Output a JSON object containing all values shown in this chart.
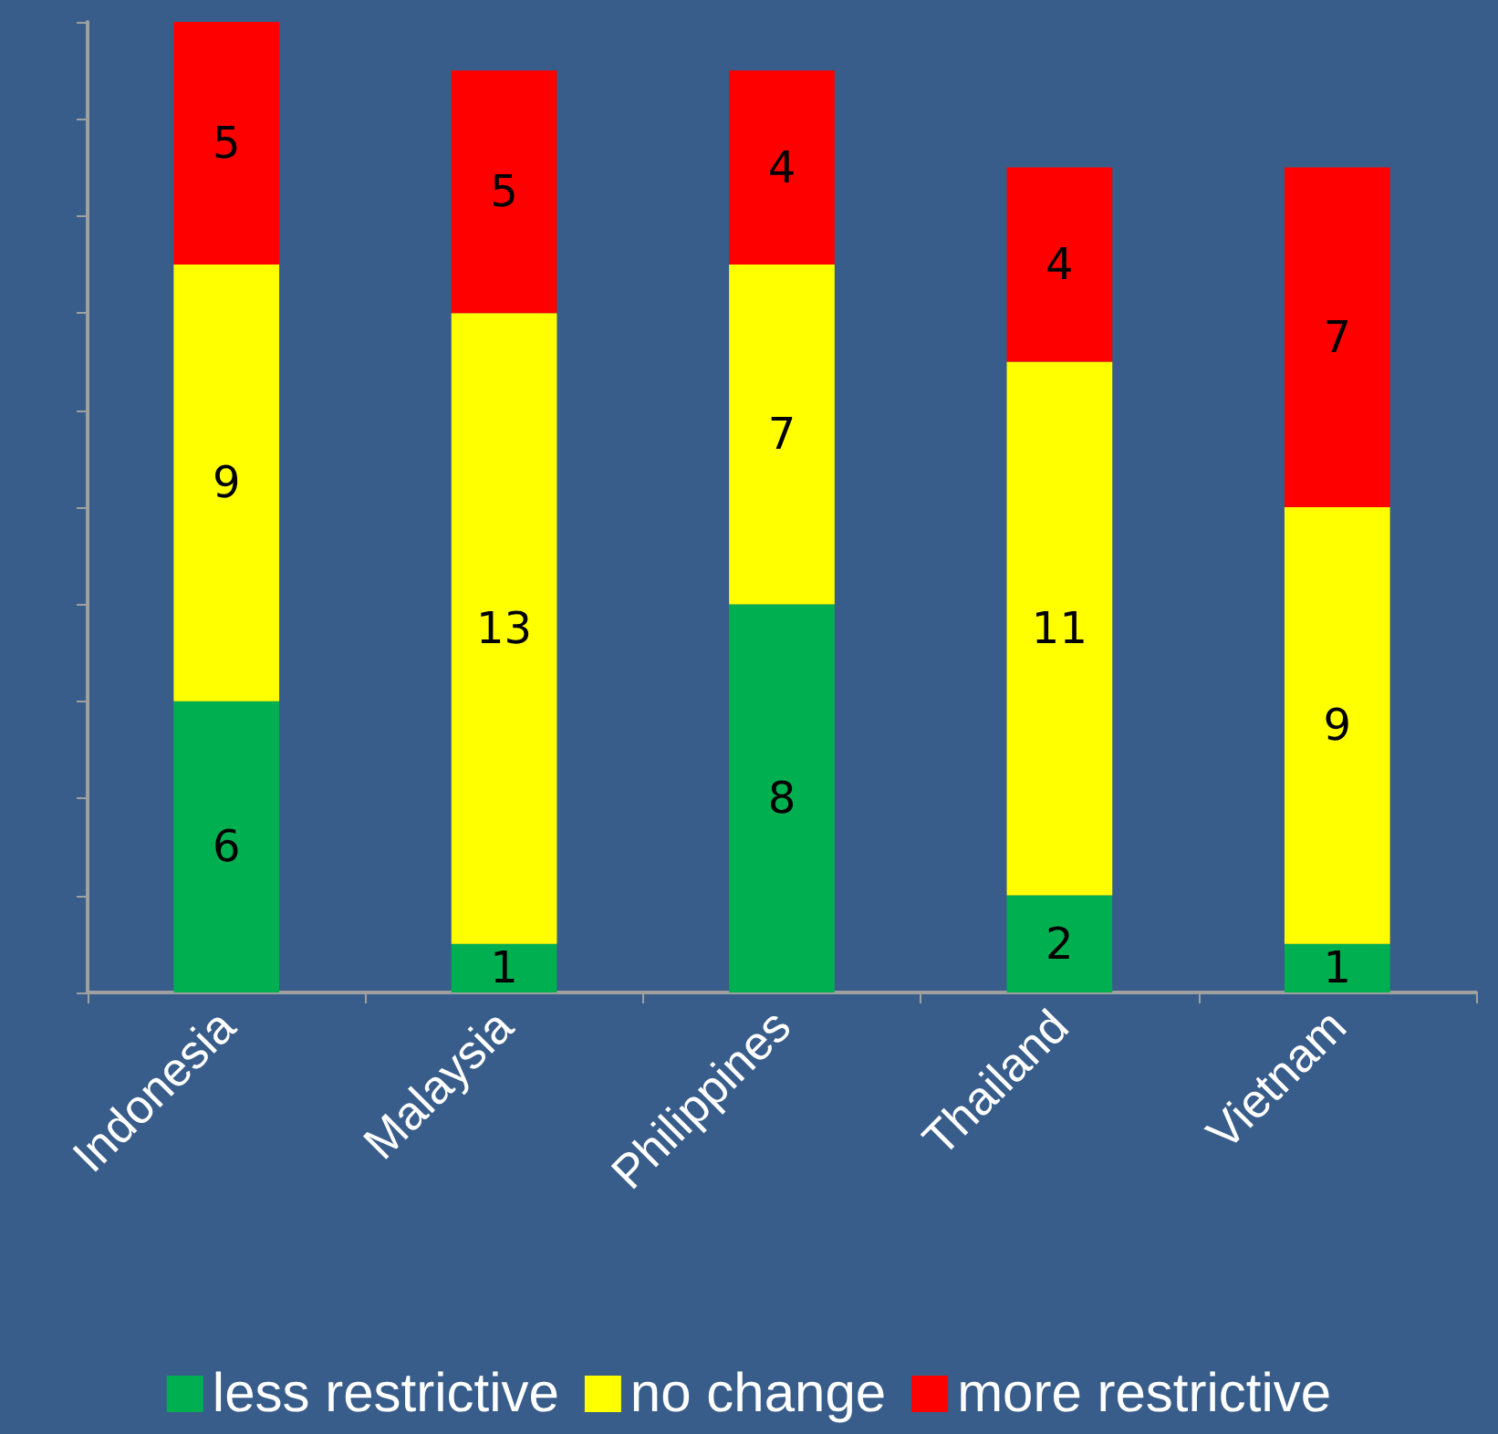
{
  "chart_data": {
    "type": "bar",
    "stacked": true,
    "categories": [
      "Indonesia",
      "Malaysia",
      "Philippines",
      "Thailand",
      "Vietnam"
    ],
    "series": [
      {
        "name": "less restrictive",
        "color": "#00b050",
        "values": [
          6,
          1,
          8,
          2,
          1
        ]
      },
      {
        "name": "no change",
        "color": "#ffff00",
        "values": [
          9,
          13,
          7,
          11,
          9
        ]
      },
      {
        "name": "more restrictive",
        "color": "#ff0000",
        "values": [
          5,
          5,
          4,
          4,
          7
        ]
      }
    ],
    "ylim": [
      0,
      20
    ],
    "yticks": [
      {
        "value": 0,
        "label": null
      },
      {
        "value": 2,
        "label": null
      },
      {
        "value": 4,
        "label": null
      },
      {
        "value": 6,
        "label": null
      },
      {
        "value": 8,
        "label": null
      },
      {
        "value": 10,
        "label": null
      },
      {
        "value": 12,
        "label": null
      },
      {
        "value": 14,
        "label": null
      },
      {
        "value": 16,
        "label": null
      },
      {
        "value": 18,
        "label": null
      },
      {
        "value": 20,
        "label": null
      }
    ],
    "tick_labels": "x",
    "data_labels": true,
    "legend": "bottom",
    "grid": false
  }
}
